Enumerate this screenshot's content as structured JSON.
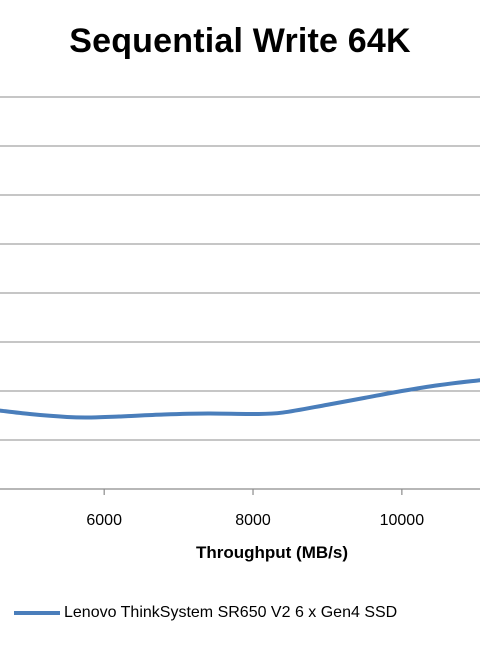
{
  "chart_data": {
    "type": "line",
    "title": "Sequential Write 64K",
    "xlabel": "Throughput (MB/s)",
    "ylabel": "",
    "xticks": [
      6000,
      8000,
      10000
    ],
    "xlim": [
      4600,
      11050
    ],
    "ylim": [
      0,
      8
    ],
    "grid": true,
    "legend": "bottom",
    "series": [
      {
        "name": "Lenovo ThinkSystem SR650 V2 6 x Gen4 SSD",
        "color": "#4a7ebb",
        "x": [
          4600,
          5000,
          5500,
          5800,
          6200,
          6800,
          7400,
          8000,
          8400,
          9000,
          9500,
          10000,
          10500,
          11050
        ],
        "y": [
          1.6,
          1.53,
          1.47,
          1.46,
          1.48,
          1.52,
          1.54,
          1.53,
          1.56,
          1.72,
          1.86,
          2.0,
          2.12,
          2.22
        ]
      }
    ]
  }
}
